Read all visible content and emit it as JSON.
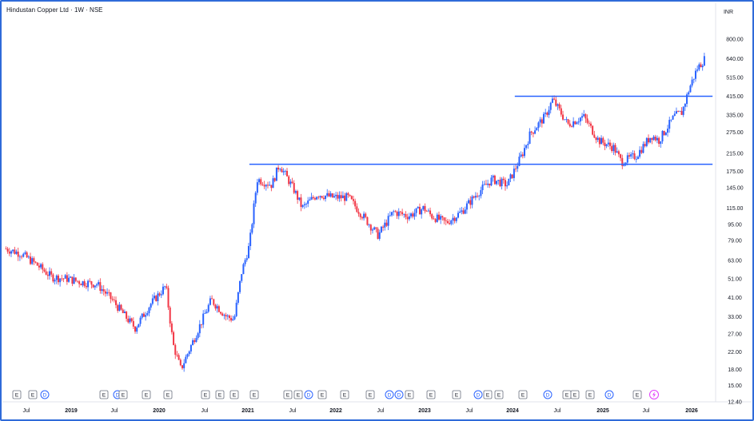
{
  "header": {
    "title": "Hindustan Copper Ltd · 1W · NSE",
    "currency": "INR"
  },
  "chart_data": {
    "type": "candlestick",
    "symbol": "Hindustan Copper Ltd",
    "interval": "1W",
    "exchange": "NSE",
    "scale": "log",
    "y_ticks": [
      "800.00",
      "640.00",
      "515.00",
      "415.00",
      "335.00",
      "275.00",
      "215.00",
      "175.00",
      "145.00",
      "115.00",
      "95.00",
      "79.00",
      "63.00",
      "51.00",
      "41.00",
      "33.00",
      "27.00",
      "22.00",
      "18.00",
      "15.00",
      "12.40"
    ],
    "x_ticks": [
      {
        "label": "Jul",
        "bold": false
      },
      {
        "label": "2019",
        "bold": true
      },
      {
        "label": "Jul",
        "bold": false
      },
      {
        "label": "2020",
        "bold": true
      },
      {
        "label": "Jul",
        "bold": false
      },
      {
        "label": "2021",
        "bold": true
      },
      {
        "label": "Jul",
        "bold": false
      },
      {
        "label": "2022",
        "bold": true
      },
      {
        "label": "Jul",
        "bold": false
      },
      {
        "label": "2023",
        "bold": true
      },
      {
        "label": "Jul",
        "bold": false
      },
      {
        "label": "2024",
        "bold": true
      },
      {
        "label": "Jul",
        "bold": false
      },
      {
        "label": "2025",
        "bold": true
      },
      {
        "label": "Jul",
        "bold": false
      },
      {
        "label": "2026",
        "bold": true
      }
    ],
    "price_path": [
      [
        "2018-05",
        72
      ],
      [
        "2018-07",
        68
      ],
      [
        "2018-09",
        60
      ],
      [
        "2018-11",
        52
      ],
      [
        "2019-01",
        51
      ],
      [
        "2019-03",
        49
      ],
      [
        "2019-05",
        48
      ],
      [
        "2019-07",
        40
      ],
      [
        "2019-09",
        32
      ],
      [
        "2019-10",
        29
      ],
      [
        "2019-12",
        38
      ],
      [
        "2020-02",
        47
      ],
      [
        "2020-03",
        24
      ],
      [
        "2020-04",
        18
      ],
      [
        "2020-06",
        27
      ],
      [
        "2020-08",
        40
      ],
      [
        "2020-10",
        33
      ],
      [
        "2020-11",
        32
      ],
      [
        "2020-12",
        55
      ],
      [
        "2021-01",
        75
      ],
      [
        "2021-02",
        160
      ],
      [
        "2021-04",
        150
      ],
      [
        "2021-05",
        190
      ],
      [
        "2021-07",
        140
      ],
      [
        "2021-08",
        115
      ],
      [
        "2021-10",
        135
      ],
      [
        "2021-12",
        130
      ],
      [
        "2022-02",
        130
      ],
      [
        "2022-04",
        105
      ],
      [
        "2022-06",
        84
      ],
      [
        "2022-08",
        110
      ],
      [
        "2022-10",
        105
      ],
      [
        "2022-12",
        115
      ],
      [
        "2023-01",
        105
      ],
      [
        "2023-03",
        97
      ],
      [
        "2023-05",
        110
      ],
      [
        "2023-07",
        135
      ],
      [
        "2023-09",
        160
      ],
      [
        "2023-11",
        150
      ],
      [
        "2024-01",
        215
      ],
      [
        "2024-02",
        270
      ],
      [
        "2024-04",
        330
      ],
      [
        "2024-05",
        400
      ],
      [
        "2024-07",
        300
      ],
      [
        "2024-09",
        330
      ],
      [
        "2024-11",
        250
      ],
      [
        "2025-01",
        230
      ],
      [
        "2025-02",
        195
      ],
      [
        "2025-04",
        210
      ],
      [
        "2025-06",
        265
      ],
      [
        "2025-07",
        250
      ],
      [
        "2025-09",
        330
      ],
      [
        "2025-10",
        345
      ],
      [
        "2025-11",
        460
      ],
      [
        "2025-12",
        570
      ],
      [
        "2026-01",
        640
      ]
    ],
    "horizontal_levels": [
      {
        "price": 415,
        "from": "2023-12",
        "to": "2026-02"
      },
      {
        "price": 190,
        "from": "2021-01",
        "to": "2026-02"
      }
    ],
    "colors": {
      "up": "#2962ff",
      "down": "#f23645",
      "level": "#2962ff"
    },
    "events": [
      {
        "type": "E"
      },
      {
        "type": "E"
      },
      {
        "type": "D"
      },
      {
        "type": "E"
      },
      {
        "type": "D"
      },
      {
        "type": "E"
      },
      {
        "type": "E"
      },
      {
        "type": "E"
      },
      {
        "type": "E"
      },
      {
        "type": "E"
      },
      {
        "type": "E"
      },
      {
        "type": "E"
      },
      {
        "type": "E"
      },
      {
        "type": "E"
      },
      {
        "type": "D"
      },
      {
        "type": "E"
      },
      {
        "type": "E"
      },
      {
        "type": "E"
      },
      {
        "type": "D"
      },
      {
        "type": "D"
      },
      {
        "type": "E"
      },
      {
        "type": "E"
      },
      {
        "type": "E"
      },
      {
        "type": "D"
      },
      {
        "type": "E"
      },
      {
        "type": "E"
      },
      {
        "type": "E"
      },
      {
        "type": "D"
      },
      {
        "type": "E"
      },
      {
        "type": "E"
      },
      {
        "type": "E"
      },
      {
        "type": "D"
      },
      {
        "type": "E"
      },
      {
        "type": "lightning"
      }
    ]
  }
}
